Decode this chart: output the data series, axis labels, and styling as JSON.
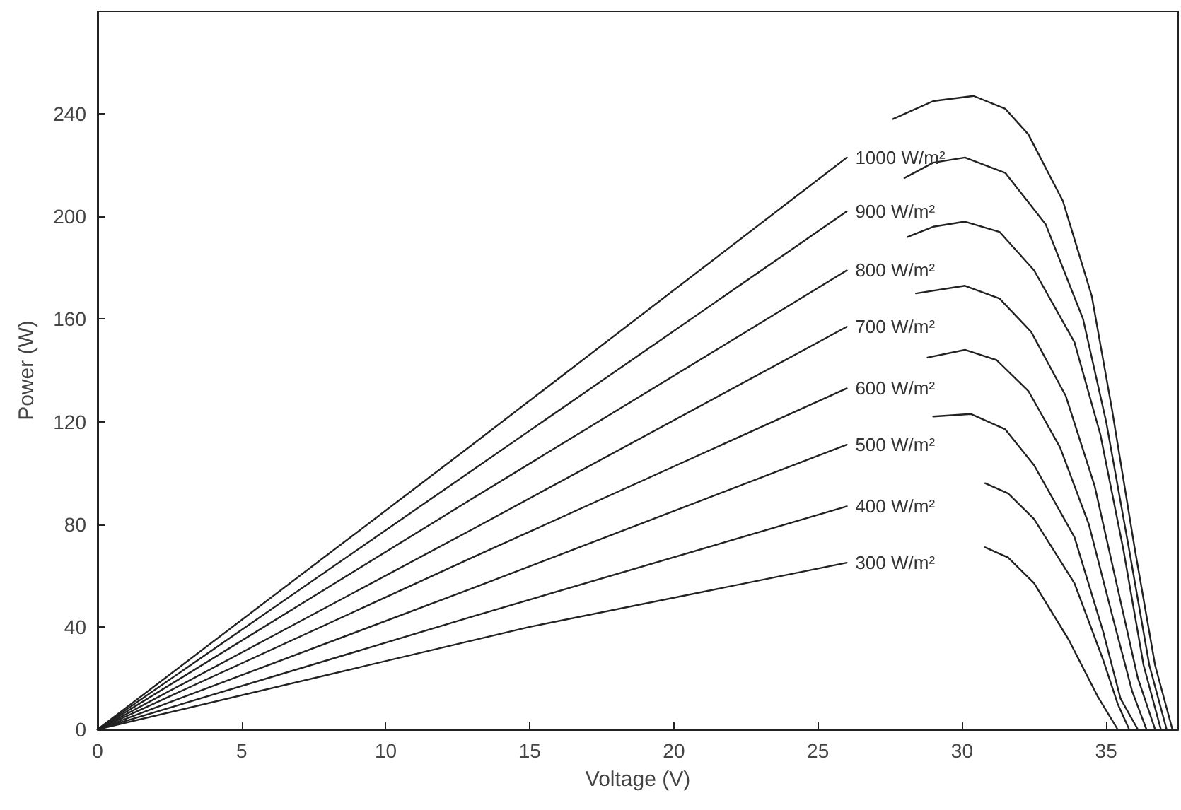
{
  "chart_data": {
    "type": "line",
    "xlabel": "Voltage (V)",
    "ylabel": "Power (W)",
    "xlim": [
      0,
      37.5
    ],
    "ylim": [
      0,
      280
    ],
    "xticks": [
      0,
      5,
      10,
      15,
      20,
      25,
      30,
      35
    ],
    "yticks": [
      0,
      40,
      80,
      120,
      160,
      200,
      240
    ],
    "grid": false,
    "legend": false,
    "marker": "none",
    "line_style": "solid",
    "series": [
      {
        "name": "1000 W/m²",
        "color": "#222222",
        "x": [
          0,
          13,
          26,
          27,
          27.6,
          29,
          30.4,
          31.5,
          32.3,
          33.5,
          34.5,
          35.2,
          36,
          36.7,
          37.3
        ],
        "values": [
          0,
          111,
          223,
          null,
          238,
          245,
          247,
          242,
          232,
          206,
          169,
          125,
          70,
          25,
          0
        ]
      },
      {
        "name": "900 W/m²",
        "color": "#222222",
        "x": [
          0,
          13,
          26,
          27,
          28,
          29,
          30.1,
          31.5,
          32.9,
          34.2,
          35,
          35.8,
          36.5,
          37.1
        ],
        "values": [
          0,
          101,
          202,
          null,
          215,
          221,
          223,
          217,
          197,
          160,
          120,
          70,
          25,
          0
        ]
      },
      {
        "name": "800 W/m²",
        "color": "#222222",
        "x": [
          0,
          13,
          26,
          27,
          28.1,
          29,
          30.1,
          31.3,
          32.5,
          33.9,
          34.8,
          35.6,
          36.3,
          36.9
        ],
        "values": [
          0,
          90,
          179,
          null,
          192,
          196,
          198,
          194,
          179,
          151,
          115,
          70,
          25,
          0
        ]
      },
      {
        "name": "700 W/m²",
        "color": "#222222",
        "x": [
          0,
          13,
          26,
          27,
          28.4,
          30.1,
          31.3,
          32.4,
          33.6,
          34.6,
          35.4,
          36.1,
          36.7
        ],
        "values": [
          0,
          78,
          157,
          null,
          170,
          173,
          168,
          155,
          130,
          95,
          55,
          20,
          0
        ]
      },
      {
        "name": "600 W/m²",
        "color": "#222222",
        "x": [
          0,
          13,
          26,
          27,
          28.8,
          30.1,
          31.2,
          32.3,
          33.4,
          34.4,
          35.2,
          35.9,
          36.4
        ],
        "values": [
          0,
          67,
          133,
          null,
          145,
          148,
          144,
          132,
          110,
          80,
          45,
          15,
          0
        ]
      },
      {
        "name": "500 W/m²",
        "color": "#222222",
        "x": [
          0,
          13,
          26,
          27,
          29,
          30.3,
          31.5,
          32.5,
          33.9,
          34.9,
          35.5,
          36.1
        ],
        "values": [
          0,
          55,
          111,
          null,
          122,
          123,
          117,
          103,
          75,
          38,
          12,
          0
        ]
      },
      {
        "name": "400 W/m²",
        "color": "#222222",
        "x": [
          0,
          13,
          26,
          27,
          30.8,
          31.6,
          32.5,
          33.9,
          34.9,
          35.4,
          35.8
        ],
        "values": [
          0,
          44,
          87,
          null,
          96,
          92,
          82,
          57,
          27,
          10,
          0
        ]
      },
      {
        "name": "300 W/m²",
        "color": "#222222",
        "x": [
          0,
          15,
          26,
          27,
          30.8,
          31.6,
          32.5,
          33.7,
          34.7,
          35.4
        ],
        "values": [
          0,
          40,
          65,
          null,
          71,
          67,
          57,
          35,
          13,
          0
        ]
      }
    ]
  }
}
